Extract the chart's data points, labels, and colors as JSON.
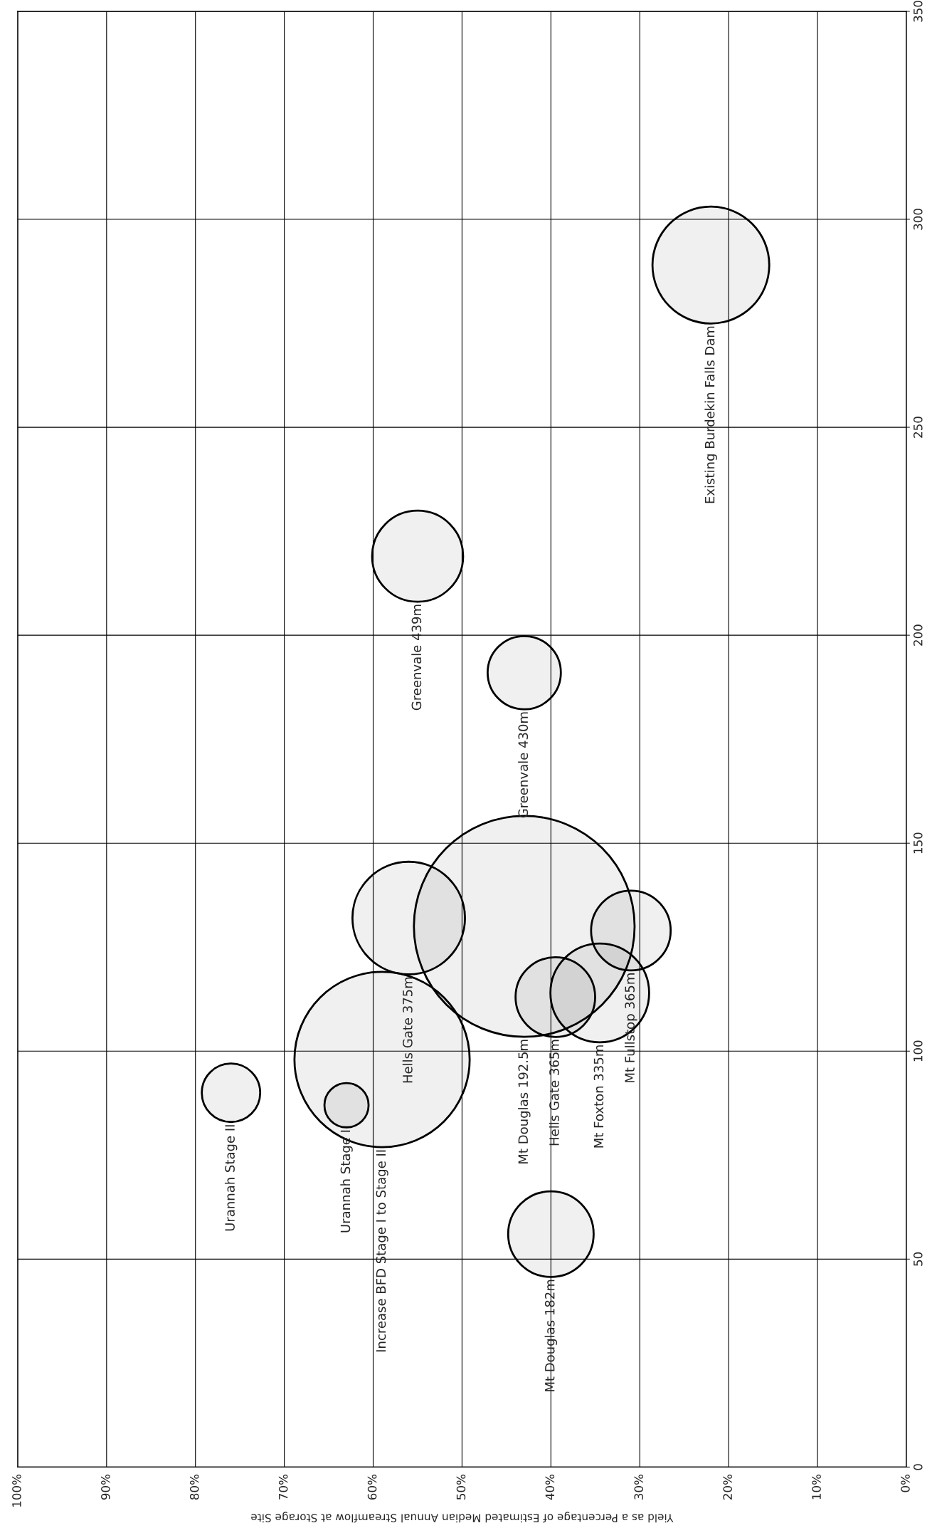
{
  "chart_data": {
    "type": "bubble",
    "xlabel": "Yield as a Percentage of Estimated Median Annual Streamflow at Storage Site",
    "xlim": [
      100,
      0
    ],
    "xticks": [
      {
        "value": 100,
        "label": "100%"
      },
      {
        "value": 90,
        "label": "90%"
      },
      {
        "value": 80,
        "label": "80%"
      },
      {
        "value": 70,
        "label": "70%"
      },
      {
        "value": 60,
        "label": "60%"
      },
      {
        "value": 50,
        "label": "50%"
      },
      {
        "value": 40,
        "label": "40%"
      },
      {
        "value": 30,
        "label": "30%"
      },
      {
        "value": 20,
        "label": "20%"
      },
      {
        "value": 10,
        "label": "10%"
      },
      {
        "value": 0,
        "label": "0%"
      }
    ],
    "ylim": [
      0,
      350
    ],
    "yticks": [
      0,
      50,
      100,
      150,
      200,
      250,
      300,
      350
    ],
    "grid": true,
    "series": [
      {
        "name": "Existing Burdekin Falls Dam",
        "color": "#000000",
        "x": [
          22
        ],
        "values": [
          289
        ],
        "sizes": [
          0.28
        ]
      },
      {
        "name": "Greenvale 439m",
        "color": "#000000",
        "x": [
          55
        ],
        "values": [
          219
        ],
        "sizes": [
          0.17
        ]
      },
      {
        "name": "Greenvale 430m",
        "color": "#000000",
        "x": [
          43
        ],
        "values": [
          191
        ],
        "sizes": [
          0.11
        ]
      },
      {
        "name": "Hells Gate 375m",
        "color": "#000000",
        "x": [
          56
        ],
        "values": [
          132
        ],
        "sizes": [
          0.26
        ]
      },
      {
        "name": "Mt Douglas 192.5m",
        "color": "#000000",
        "x": [
          43
        ],
        "values": [
          130
        ],
        "sizes": [
          1
        ]
      },
      {
        "name": "Hells Gate 365m",
        "color": "#000000",
        "x": [
          39.5
        ],
        "values": [
          113
        ],
        "sizes": [
          0.13
        ]
      },
      {
        "name": "Mt Foxton 335m",
        "color": "#000000",
        "x": [
          34.5
        ],
        "values": [
          114
        ],
        "sizes": [
          0.2
        ]
      },
      {
        "name": "Mt Fullstop 365m",
        "color": "#000000",
        "x": [
          31
        ],
        "values": [
          129
        ],
        "sizes": [
          0.13
        ]
      },
      {
        "name": "Increase BFD Stage I to Stage II",
        "color": "#000000",
        "x": [
          59
        ],
        "values": [
          98
        ],
        "sizes": [
          0.63
        ]
      },
      {
        "name": "Urannah Stage I",
        "color": "#000000",
        "x": [
          63
        ],
        "values": [
          87
        ],
        "sizes": [
          0.04
        ]
      },
      {
        "name": "Urannah Stage II",
        "color": "#000000",
        "x": [
          76
        ],
        "values": [
          90
        ],
        "sizes": [
          0.07
        ]
      },
      {
        "name": "Mt Douglas 182m",
        "color": "#000000",
        "x": [
          40
        ],
        "values": [
          56
        ],
        "sizes": [
          0.15
        ]
      }
    ]
  }
}
